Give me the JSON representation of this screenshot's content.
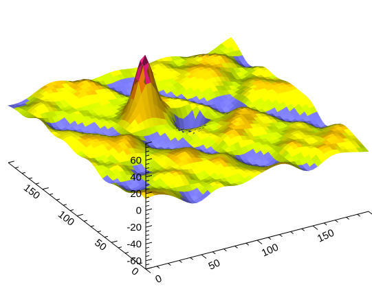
{
  "chart_data": {
    "type": "surface",
    "title": "",
    "xlabel": "",
    "ylabel": "",
    "zlabel": "",
    "x_range": [
      0,
      200
    ],
    "y_range": [
      0,
      200
    ],
    "z_range": [
      -60,
      80
    ],
    "x_tick_labels": [
      "0",
      "50",
      "100",
      "150"
    ],
    "y_tick_labels": [
      "0",
      "50",
      "100",
      "150"
    ],
    "z_tick_labels": [
      "-60",
      "-40",
      "-20",
      "0",
      "20",
      "40",
      "60"
    ],
    "peak": {
      "x": 78,
      "y": 128,
      "z": 70
    },
    "trough": {
      "x": 108,
      "y": 110,
      "z": -60
    },
    "baseline_level": 5,
    "ripple_amplitude": 5,
    "color_bands": [
      {
        "min": -60,
        "max": 0,
        "color": "#7a7aff"
      },
      {
        "min": 0,
        "max": 5,
        "color": "#ccf000"
      },
      {
        "min": 5,
        "max": 10,
        "color": "#ffff00"
      },
      {
        "min": 10,
        "max": 40,
        "color": "#ffcc00"
      },
      {
        "min": 40,
        "max": 55,
        "color": "#ff8800"
      },
      {
        "min": 55,
        "max": 80,
        "color": "#ff2288"
      }
    ]
  }
}
